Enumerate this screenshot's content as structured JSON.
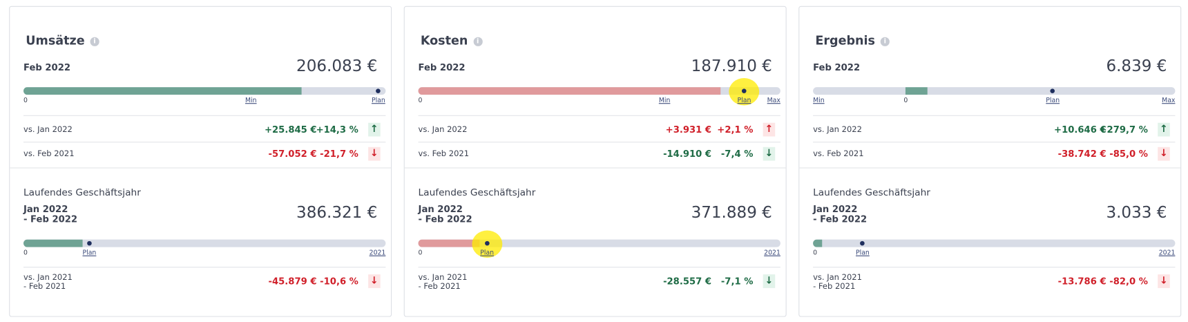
{
  "cards": [
    {
      "title": "Umsätze",
      "period": "Feb 2022",
      "value": "206.083 €",
      "bar_labels": [
        "0",
        "Min",
        "Plan"
      ],
      "comparisons": [
        {
          "label": "vs. Jan 2022",
          "abs": "+25.845 €",
          "pct": "+14,3 %",
          "arrow": "↑",
          "color": "#1e6b45"
        },
        {
          "label": "vs. Feb 2021",
          "abs": "-57.052 €",
          "pct": "-21,7 %",
          "arrow": "↓",
          "color": "#d0202a"
        }
      ],
      "ytd_title": "Laufendes Geschäftsjahr",
      "ytd_period": "Jan 2022\n- Feb 2022",
      "ytd_value": "386.321 €",
      "ytd_bar_labels": [
        "0",
        "Plan",
        "2021"
      ],
      "ytd_comparison": {
        "label": "vs. Jan 2021\n- Feb 2021",
        "abs": "-45.879 €",
        "pct": "-10,6 %",
        "arrow": "↓",
        "color": "#d0202a"
      }
    },
    {
      "title": "Kosten",
      "period": "Feb 2022",
      "value": "187.910 €",
      "bar_labels": [
        "0",
        "Min",
        "Plan",
        "Max"
      ],
      "comparisons": [
        {
          "label": "vs. Jan 2022",
          "abs": "+3.931 €",
          "pct": "+2,1 %",
          "arrow": "↑",
          "color": "#d0202a"
        },
        {
          "label": "vs. Feb 2021",
          "abs": "-14.910 €",
          "pct": "-7,4 %",
          "arrow": "↓",
          "color": "#1e6b45"
        }
      ],
      "ytd_title": "Laufendes Geschäftsjahr",
      "ytd_period": "Jan 2022\n- Feb 2022",
      "ytd_value": "371.889 €",
      "ytd_bar_labels": [
        "0",
        "Plan",
        "2021"
      ],
      "ytd_comparison": {
        "label": "vs. Jan 2021\n- Feb 2021",
        "abs": "-28.557 €",
        "pct": "-7,1 %",
        "arrow": "↓",
        "color": "#1e6b45"
      }
    },
    {
      "title": "Ergebnis",
      "period": "Feb 2022",
      "value": "6.839 €",
      "bar_labels": [
        "Min",
        "0",
        "Plan",
        "Max"
      ],
      "comparisons": [
        {
          "label": "vs. Jan 2022",
          "abs": "+10.646 €",
          "pct": "+279,7 %",
          "arrow": "↑",
          "color": "#1e6b45"
        },
        {
          "label": "vs. Feb 2021",
          "abs": "-38.742 €",
          "pct": "-85,0 %",
          "arrow": "↓",
          "color": "#d0202a"
        }
      ],
      "ytd_title": "Laufendes Geschäftsjahr",
      "ytd_period": "Jan 2022\n- Feb 2022",
      "ytd_value": "3.033 €",
      "ytd_bar_labels": [
        "0",
        "Plan",
        "2021"
      ],
      "ytd_comparison": {
        "label": "vs. Jan 2021\n- Feb 2021",
        "abs": "-13.786 €",
        "pct": "-82,0 %",
        "arrow": "↓",
        "color": "#d0202a"
      }
    }
  ]
}
